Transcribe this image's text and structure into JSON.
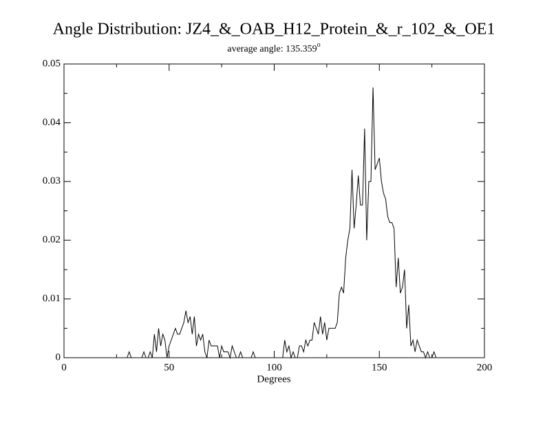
{
  "chart_data": {
    "type": "line",
    "title": "Angle Distribution: JZ4_&_OAB_H12_Protein_&_r_102_&_OE1",
    "subtitle": "average angle: 135.359",
    "subtitle_superscript": "o",
    "x_label": "Degrees",
    "color": "#000000",
    "xlim": [
      0,
      200
    ],
    "xticks": [
      0,
      50,
      100,
      150,
      200
    ],
    "xticks_minor": [
      25,
      75,
      125,
      175
    ],
    "ylim": [
      0,
      0.05
    ],
    "yticks": [
      0,
      0.01,
      0.02,
      0.03,
      0.04,
      0.05
    ],
    "yticks_minor": [
      0.005,
      0.015,
      0.025,
      0.035,
      0.045
    ],
    "x": [
      25,
      26,
      27,
      28,
      29,
      30,
      31,
      32,
      33,
      34,
      35,
      36,
      37,
      38,
      39,
      40,
      41,
      42,
      43,
      44,
      45,
      46,
      47,
      48,
      49,
      50,
      51,
      52,
      53,
      54,
      55,
      56,
      57,
      58,
      59,
      60,
      61,
      62,
      63,
      64,
      65,
      66,
      67,
      68,
      69,
      70,
      71,
      72,
      73,
      74,
      75,
      76,
      77,
      78,
      79,
      80,
      81,
      82,
      83,
      84,
      85,
      86,
      87,
      88,
      89,
      90,
      91,
      92,
      93,
      94,
      95,
      96,
      97,
      98,
      99,
      100,
      101,
      102,
      103,
      104,
      105,
      106,
      107,
      108,
      109,
      110,
      111,
      112,
      113,
      114,
      115,
      116,
      117,
      118,
      119,
      120,
      121,
      122,
      123,
      124,
      125,
      126,
      127,
      128,
      129,
      130,
      131,
      132,
      133,
      134,
      135,
      136,
      137,
      138,
      139,
      140,
      141,
      142,
      143,
      144,
      145,
      146,
      147,
      148,
      149,
      150,
      151,
      152,
      153,
      154,
      155,
      156,
      157,
      158,
      159,
      160,
      161,
      162,
      163,
      164,
      165,
      166,
      167,
      168,
      169,
      170,
      171,
      172,
      173,
      174,
      175,
      176,
      177
    ],
    "values": [
      0,
      0,
      0,
      0,
      0,
      0,
      0.001,
      0,
      0,
      0,
      0,
      0,
      0,
      0.001,
      0,
      0,
      0.001,
      0,
      0.004,
      0.001,
      0.005,
      0.002,
      0.004,
      0.003,
      0,
      0.002,
      0.003,
      0.004,
      0.005,
      0.004,
      0.004,
      0.005,
      0.006,
      0.008,
      0.006,
      0.007,
      0.004,
      0.007,
      0.002,
      0.004,
      0.003,
      0.004,
      0.001,
      0,
      0.003,
      0.002,
      0.002,
      0.002,
      0.002,
      0,
      0.002,
      0.001,
      0.001,
      0.001,
      0,
      0.002,
      0.001,
      0,
      0,
      0.001,
      0,
      0,
      0,
      0,
      0,
      0.001,
      0,
      0,
      0,
      0,
      0,
      0,
      0,
      0,
      0,
      0,
      0,
      0,
      0,
      0,
      0.003,
      0.001,
      0.002,
      0,
      0.001,
      0,
      0,
      0.002,
      0.002,
      0.001,
      0.003,
      0.002,
      0.003,
      0.003,
      0.006,
      0.005,
      0.004,
      0.007,
      0.004,
      0.006,
      0.003,
      0.005,
      0.005,
      0.005,
      0.005,
      0.006,
      0.011,
      0.012,
      0.011,
      0.017,
      0.02,
      0.022,
      0.032,
      0.022,
      0.026,
      0.031,
      0.026,
      0.026,
      0.039,
      0.02,
      0.03,
      0.03,
      0.046,
      0.032,
      0.033,
      0.034,
      0.03,
      0.028,
      0.027,
      0.024,
      0.023,
      0.023,
      0.022,
      0.012,
      0.017,
      0.011,
      0.012,
      0.015,
      0.005,
      0.009,
      0.002,
      0.003,
      0.001,
      0.003,
      0.002,
      0.001,
      0.001,
      0,
      0.001,
      0,
      0,
      0.001,
      0
    ]
  }
}
